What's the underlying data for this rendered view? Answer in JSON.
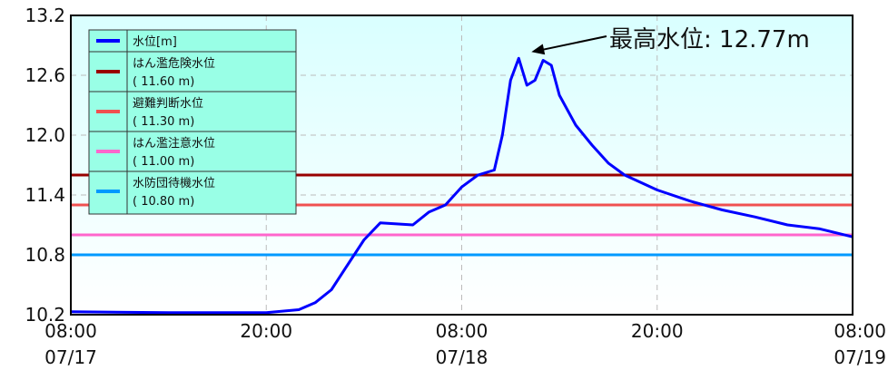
{
  "chart_data": {
    "type": "line",
    "x_range": [
      "07/17 08:00",
      "07/19 08:00"
    ],
    "ylim": [
      10.2,
      13.2
    ],
    "yticks": [
      "13.2",
      "12.6",
      "12.0",
      "11.4",
      "10.8",
      "10.2"
    ],
    "xticks": [
      {
        "time": "08:00",
        "date": "07/17"
      },
      {
        "time": "20:00",
        "date": ""
      },
      {
        "time": "08:00",
        "date": "07/18"
      },
      {
        "time": "20:00",
        "date": ""
      },
      {
        "time": "08:00",
        "date": "07/19"
      }
    ],
    "grid": true,
    "legend_position": "top-left",
    "reference_lines": [
      {
        "label": "はん濫危険水位",
        "value_text": "(   11.60  m)",
        "value": 11.6,
        "color": "#990000"
      },
      {
        "label": "避難判断水位",
        "value_text": "(   11.30  m)",
        "value": 11.3,
        "color": "#f05050"
      },
      {
        "label": "はん濫注意水位",
        "value_text": "(   11.00  m)",
        "value": 11.0,
        "color": "#ff66cc"
      },
      {
        "label": "水防団待機水位",
        "value_text": "(   10.80  m)",
        "value": 10.8,
        "color": "#0099ff"
      }
    ],
    "series": [
      {
        "name": "水位[m]",
        "color": "#0000ff",
        "points": [
          [
            "07/17 08:00",
            10.23
          ],
          [
            "07/17 14:00",
            10.22
          ],
          [
            "07/17 20:00",
            10.22
          ],
          [
            "07/17 22:00",
            10.25
          ],
          [
            "07/17 23:00",
            10.32
          ],
          [
            "07/18 00:00",
            10.45
          ],
          [
            "07/18 01:00",
            10.7
          ],
          [
            "07/18 02:00",
            10.95
          ],
          [
            "07/18 03:00",
            11.12
          ],
          [
            "07/18 04:00",
            11.11
          ],
          [
            "07/18 05:00",
            11.1
          ],
          [
            "07/18 06:00",
            11.23
          ],
          [
            "07/18 07:00",
            11.3
          ],
          [
            "07/18 08:00",
            11.48
          ],
          [
            "07/18 09:00",
            11.6
          ],
          [
            "07/18 10:00",
            11.65
          ],
          [
            "07/18 10:30",
            12.0
          ],
          [
            "07/18 11:00",
            12.55
          ],
          [
            "07/18 11:30",
            12.77
          ],
          [
            "07/18 12:00",
            12.5
          ],
          [
            "07/18 12:30",
            12.55
          ],
          [
            "07/18 13:00",
            12.75
          ],
          [
            "07/18 13:30",
            12.7
          ],
          [
            "07/18 14:00",
            12.4
          ],
          [
            "07/18 15:00",
            12.1
          ],
          [
            "07/18 16:00",
            11.9
          ],
          [
            "07/18 17:00",
            11.72
          ],
          [
            "07/18 18:00",
            11.6
          ],
          [
            "07/18 20:00",
            11.45
          ],
          [
            "07/18 22:00",
            11.34
          ],
          [
            "07/19 00:00",
            11.25
          ],
          [
            "07/19 02:00",
            11.18
          ],
          [
            "07/19 04:00",
            11.1
          ],
          [
            "07/19 06:00",
            11.06
          ],
          [
            "07/19 08:00",
            10.98
          ]
        ]
      }
    ],
    "annotations": [
      {
        "text": "最高水位: 12.77m",
        "target": [
          "07/18 11:30",
          12.77
        ]
      }
    ]
  },
  "colors": {
    "plot_background_top": "#d9ffff",
    "plot_background_bottom": "#ffffff",
    "legend_background": "#99ffe6",
    "grid": "#bbbbbb"
  }
}
